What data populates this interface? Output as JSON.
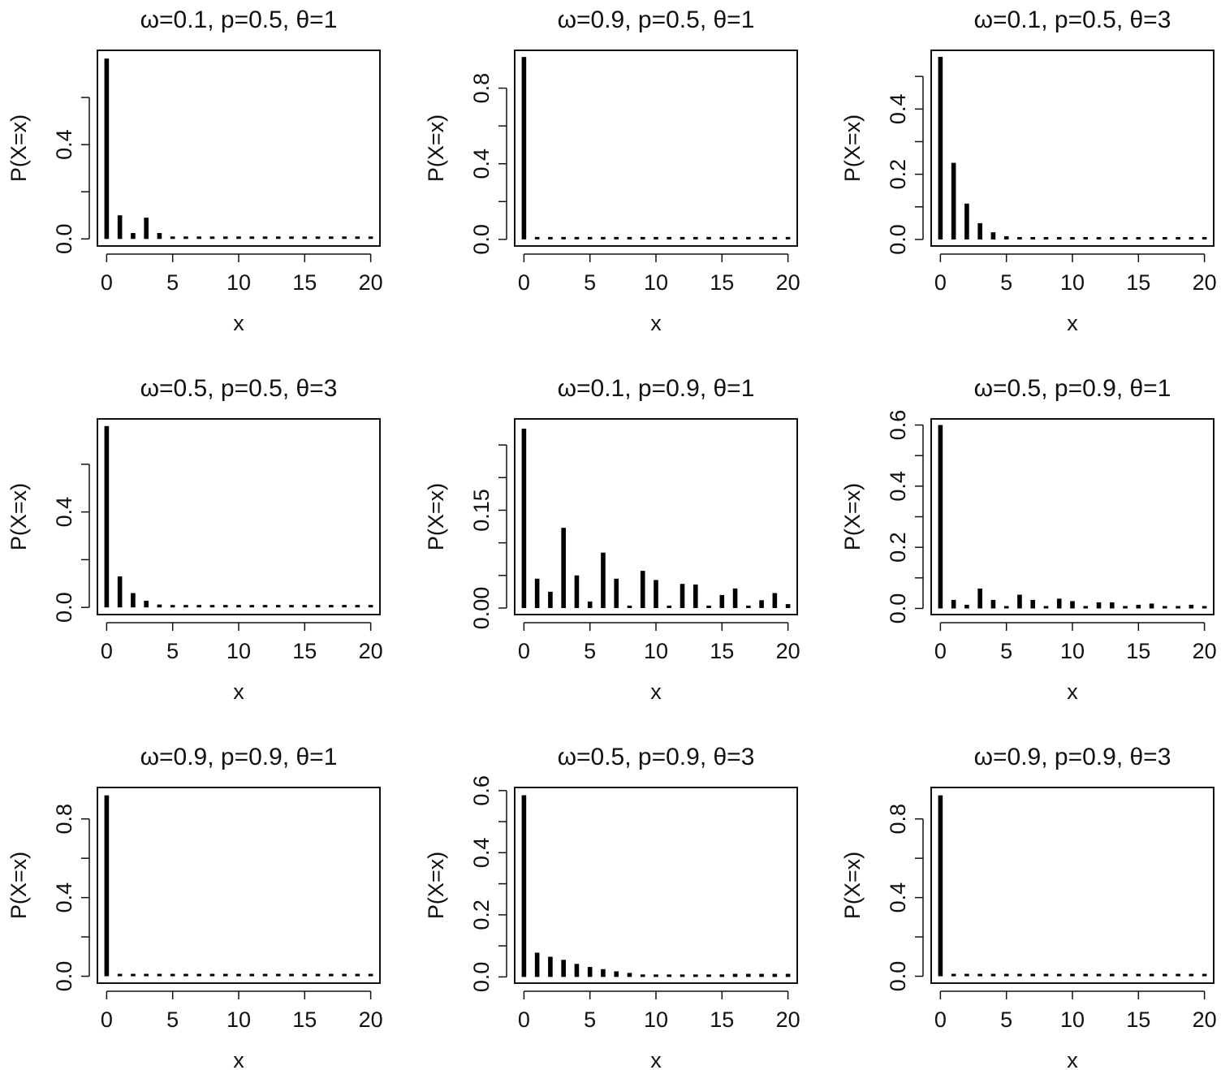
{
  "chart_data": [
    {
      "type": "bar",
      "title": "ω=0.1, p=0.5, θ=1",
      "xlabel": "x",
      "ylabel": "P(X=x)",
      "x": [
        0,
        1,
        2,
        3,
        4,
        5,
        6,
        7,
        8,
        9,
        10,
        11,
        12,
        13,
        14,
        15,
        16,
        17,
        18,
        19,
        20
      ],
      "values": [
        0.765,
        0.1,
        0.025,
        0.09,
        0.025,
        0.003,
        0.005,
        0.001,
        0.001,
        0.001,
        0.001,
        0.001,
        0.001,
        0.001,
        0.001,
        0.001,
        0.001,
        0.001,
        0.001,
        0.001,
        0.001
      ],
      "xlim": [
        -0.7,
        20.7
      ],
      "ylim": [
        -0.03,
        0.8
      ],
      "xticks": [
        0,
        5,
        10,
        15,
        20
      ],
      "xtick_labels": [
        "0",
        "5",
        "10",
        "15",
        "20"
      ],
      "yticks": [
        0,
        0.4
      ],
      "ytick_labels": [
        "0.0",
        "0.4"
      ],
      "ytick_minor": [
        0.2,
        0.6
      ]
    },
    {
      "type": "bar",
      "title": "ω=0.9, p=0.5, θ=1",
      "xlabel": "x",
      "ylabel": "P(X=x)",
      "x": [
        0,
        1,
        2,
        3,
        4,
        5,
        6,
        7,
        8,
        9,
        10,
        11,
        12,
        13,
        14,
        15,
        16,
        17,
        18,
        19,
        20
      ],
      "values": [
        0.965,
        0.008,
        0.003,
        0.01,
        0.003,
        0.001,
        0.001,
        0.001,
        0.001,
        0.001,
        0.001,
        0.001,
        0.001,
        0.001,
        0.001,
        0.001,
        0.001,
        0.001,
        0.001,
        0.001,
        0.001
      ],
      "xlim": [
        -0.7,
        20.7
      ],
      "ylim": [
        -0.035,
        1.0
      ],
      "xticks": [
        0,
        5,
        10,
        15,
        20
      ],
      "xtick_labels": [
        "0",
        "5",
        "10",
        "15",
        "20"
      ],
      "yticks": [
        0,
        0.4,
        0.8
      ],
      "ytick_labels": [
        "0.0",
        "0.4",
        "0.8"
      ],
      "ytick_minor": [
        0.2,
        0.6
      ]
    },
    {
      "type": "bar",
      "title": "ω=0.1, p=0.5, θ=3",
      "xlabel": "x",
      "ylabel": "P(X=x)",
      "x": [
        0,
        1,
        2,
        3,
        4,
        5,
        6,
        7,
        8,
        9,
        10,
        11,
        12,
        13,
        14,
        15,
        16,
        17,
        18,
        19,
        20
      ],
      "values": [
        0.56,
        0.235,
        0.11,
        0.05,
        0.022,
        0.01,
        0.005,
        0.002,
        0.001,
        0.001,
        0.001,
        0.001,
        0.001,
        0.001,
        0.001,
        0.001,
        0.001,
        0.001,
        0.001,
        0.001,
        0.001
      ],
      "xlim": [
        -0.7,
        20.7
      ],
      "ylim": [
        -0.02,
        0.58
      ],
      "xticks": [
        0,
        5,
        10,
        15,
        20
      ],
      "xtick_labels": [
        "0",
        "5",
        "10",
        "15",
        "20"
      ],
      "yticks": [
        0,
        0.2,
        0.4
      ],
      "ytick_labels": [
        "0.0",
        "0.2",
        "0.4"
      ],
      "ytick_minor": [
        0.1,
        0.3,
        0.5
      ]
    },
    {
      "type": "bar",
      "title": "ω=0.5, p=0.5, θ=3",
      "xlabel": "x",
      "ylabel": "P(X=x)",
      "x": [
        0,
        1,
        2,
        3,
        4,
        5,
        6,
        7,
        8,
        9,
        10,
        11,
        12,
        13,
        14,
        15,
        16,
        17,
        18,
        19,
        20
      ],
      "values": [
        0.76,
        0.13,
        0.06,
        0.028,
        0.012,
        0.004,
        0.002,
        0.001,
        0.001,
        0.001,
        0.001,
        0.001,
        0.001,
        0.001,
        0.001,
        0.001,
        0.001,
        0.001,
        0.001,
        0.001,
        0.001
      ],
      "xlim": [
        -0.7,
        20.7
      ],
      "ylim": [
        -0.03,
        0.79
      ],
      "xticks": [
        0,
        5,
        10,
        15,
        20
      ],
      "xtick_labels": [
        "0",
        "5",
        "10",
        "15",
        "20"
      ],
      "yticks": [
        0,
        0.4
      ],
      "ytick_labels": [
        "0.0",
        "0.4"
      ],
      "ytick_minor": [
        0.2,
        0.6
      ]
    },
    {
      "type": "bar",
      "title": "ω=0.1, p=0.9, θ=1",
      "xlabel": "x",
      "ylabel": "P(X=x)",
      "x": [
        0,
        1,
        2,
        3,
        4,
        5,
        6,
        7,
        8,
        9,
        10,
        11,
        12,
        13,
        14,
        15,
        16,
        17,
        18,
        19,
        20
      ],
      "values": [
        0.275,
        0.045,
        0.025,
        0.123,
        0.05,
        0.01,
        0.085,
        0.045,
        0.003,
        0.057,
        0.043,
        0.003,
        0.037,
        0.036,
        0.002,
        0.02,
        0.03,
        0.002,
        0.012,
        0.023,
        0.006
      ],
      "xlim": [
        -0.7,
        20.7
      ],
      "ylim": [
        -0.01,
        0.29
      ],
      "xticks": [
        0,
        5,
        10,
        15,
        20
      ],
      "xtick_labels": [
        "0",
        "5",
        "10",
        "15",
        "20"
      ],
      "yticks": [
        0,
        0.15
      ],
      "ytick_labels": [
        "0.00",
        "0.15"
      ],
      "ytick_minor": [
        0.05,
        0.1,
        0.2,
        0.25
      ]
    },
    {
      "type": "bar",
      "title": "ω=0.5, p=0.9, θ=1",
      "xlabel": "x",
      "ylabel": "P(X=x)",
      "x": [
        0,
        1,
        2,
        3,
        4,
        5,
        6,
        7,
        8,
        9,
        10,
        11,
        12,
        13,
        14,
        15,
        16,
        17,
        18,
        19,
        20
      ],
      "values": [
        0.6,
        0.028,
        0.012,
        0.065,
        0.028,
        0.005,
        0.045,
        0.028,
        0.002,
        0.032,
        0.024,
        0.002,
        0.02,
        0.02,
        0.001,
        0.012,
        0.016,
        0.001,
        0.008,
        0.012,
        0.003
      ],
      "xlim": [
        -0.7,
        20.7
      ],
      "ylim": [
        -0.02,
        0.62
      ],
      "xticks": [
        0,
        5,
        10,
        15,
        20
      ],
      "xtick_labels": [
        "0",
        "5",
        "10",
        "15",
        "20"
      ],
      "yticks": [
        0,
        0.2,
        0.4,
        0.6
      ],
      "ytick_labels": [
        "0.0",
        "0.2",
        "0.4",
        "0.6"
      ],
      "ytick_minor": [
        0.1,
        0.3,
        0.5
      ]
    },
    {
      "type": "bar",
      "title": "ω=0.9, p=0.9, θ=1",
      "xlabel": "x",
      "ylabel": "P(X=x)",
      "x": [
        0,
        1,
        2,
        3,
        4,
        5,
        6,
        7,
        8,
        9,
        10,
        11,
        12,
        13,
        14,
        15,
        16,
        17,
        18,
        19,
        20
      ],
      "values": [
        0.92,
        0.006,
        0.003,
        0.012,
        0.005,
        0.001,
        0.008,
        0.005,
        0.001,
        0.006,
        0.004,
        0.001,
        0.004,
        0.004,
        0.001,
        0.002,
        0.003,
        0.001,
        0.001,
        0.002,
        0.001
      ],
      "xlim": [
        -0.7,
        20.7
      ],
      "ylim": [
        -0.035,
        0.96
      ],
      "xticks": [
        0,
        5,
        10,
        15,
        20
      ],
      "xtick_labels": [
        "0",
        "5",
        "10",
        "15",
        "20"
      ],
      "yticks": [
        0,
        0.4,
        0.8
      ],
      "ytick_labels": [
        "0.0",
        "0.4",
        "0.8"
      ],
      "ytick_minor": [
        0.2,
        0.6
      ]
    },
    {
      "type": "bar",
      "title": "ω=0.5, p=0.9, θ=3",
      "xlabel": "x",
      "ylabel": "P(X=x)",
      "x": [
        0,
        1,
        2,
        3,
        4,
        5,
        6,
        7,
        8,
        9,
        10,
        11,
        12,
        13,
        14,
        15,
        16,
        17,
        18,
        19,
        20
      ],
      "values": [
        0.585,
        0.078,
        0.065,
        0.055,
        0.042,
        0.032,
        0.025,
        0.018,
        0.013,
        0.008,
        0.004,
        0.003,
        0.003,
        0.004,
        0.006,
        0.008,
        0.01,
        0.01,
        0.01,
        0.01,
        0.01
      ],
      "xlim": [
        -0.7,
        20.7
      ],
      "ylim": [
        -0.02,
        0.61
      ],
      "xticks": [
        0,
        5,
        10,
        15,
        20
      ],
      "xtick_labels": [
        "0",
        "5",
        "10",
        "15",
        "20"
      ],
      "yticks": [
        0,
        0.2,
        0.4,
        0.6
      ],
      "ytick_labels": [
        "0.0",
        "0.2",
        "0.4",
        "0.6"
      ],
      "ytick_minor": [
        0.1,
        0.3,
        0.5
      ]
    },
    {
      "type": "bar",
      "title": "ω=0.9, p=0.9, θ=3",
      "xlabel": "x",
      "ylabel": "P(X=x)",
      "x": [
        0,
        1,
        2,
        3,
        4,
        5,
        6,
        7,
        8,
        9,
        10,
        11,
        12,
        13,
        14,
        15,
        16,
        17,
        18,
        19,
        20
      ],
      "values": [
        0.92,
        0.012,
        0.012,
        0.01,
        0.008,
        0.006,
        0.005,
        0.004,
        0.003,
        0.002,
        0.001,
        0.001,
        0.001,
        0.001,
        0.001,
        0.001,
        0.001,
        0.001,
        0.001,
        0.001,
        0.001
      ],
      "xlim": [
        -0.7,
        20.7
      ],
      "ylim": [
        -0.035,
        0.96
      ],
      "xticks": [
        0,
        5,
        10,
        15,
        20
      ],
      "xtick_labels": [
        "0",
        "5",
        "10",
        "15",
        "20"
      ],
      "yticks": [
        0,
        0.4,
        0.8
      ],
      "ytick_labels": [
        "0.0",
        "0.4",
        "0.8"
      ],
      "ytick_minor": [
        0.2,
        0.6
      ]
    }
  ]
}
